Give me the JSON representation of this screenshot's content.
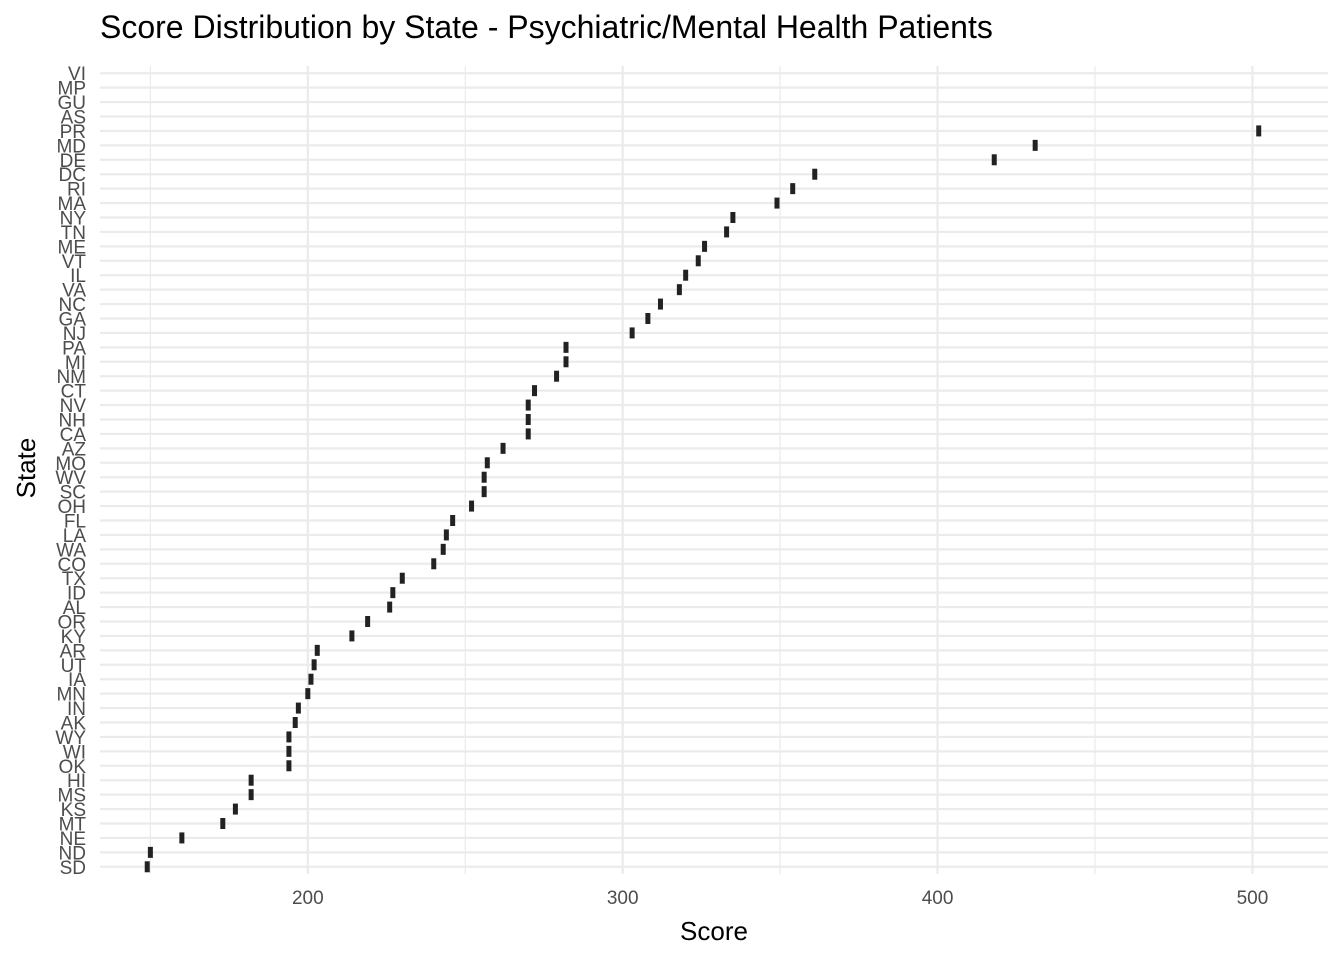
{
  "chart_data": {
    "type": "boxplot",
    "title": "Score Distribution by State - Psychiatric/Mental Health Patients",
    "xlabel": "Score",
    "ylabel": "State",
    "xlim": [
      134,
      524
    ],
    "x_ticks": [
      200,
      300,
      400,
      500
    ],
    "x_minor_ticks": [
      150,
      250,
      350,
      450
    ],
    "grid": true,
    "mark_color": "#222222",
    "grid_color": "#ebebeb",
    "categories": [
      "SD",
      "ND",
      "NE",
      "MT",
      "KS",
      "MS",
      "HI",
      "OK",
      "WI",
      "WY",
      "AK",
      "IN",
      "MN",
      "IA",
      "UT",
      "AR",
      "KY",
      "OR",
      "AL",
      "ID",
      "TX",
      "CO",
      "WA",
      "LA",
      "FL",
      "OH",
      "SC",
      "WV",
      "MO",
      "AZ",
      "CA",
      "NH",
      "NV",
      "CT",
      "NM",
      "MI",
      "PA",
      "NJ",
      "GA",
      "NC",
      "VA",
      "IL",
      "VT",
      "ME",
      "TN",
      "NY",
      "MA",
      "RI",
      "DC",
      "DE",
      "MD",
      "PR",
      "AS",
      "GU",
      "MP",
      "VI"
    ],
    "values": [
      149,
      150,
      160,
      173,
      177,
      182,
      182,
      194,
      194,
      194,
      196,
      197,
      200,
      201,
      202,
      203,
      214,
      219,
      226,
      227,
      230,
      240,
      243,
      244,
      246,
      252,
      256,
      256,
      257,
      262,
      270,
      270,
      270,
      272,
      279,
      282,
      282,
      303,
      308,
      312,
      318,
      320,
      324,
      326,
      333,
      335,
      349,
      354,
      361,
      418,
      431,
      502,
      null,
      null,
      null,
      null
    ]
  }
}
